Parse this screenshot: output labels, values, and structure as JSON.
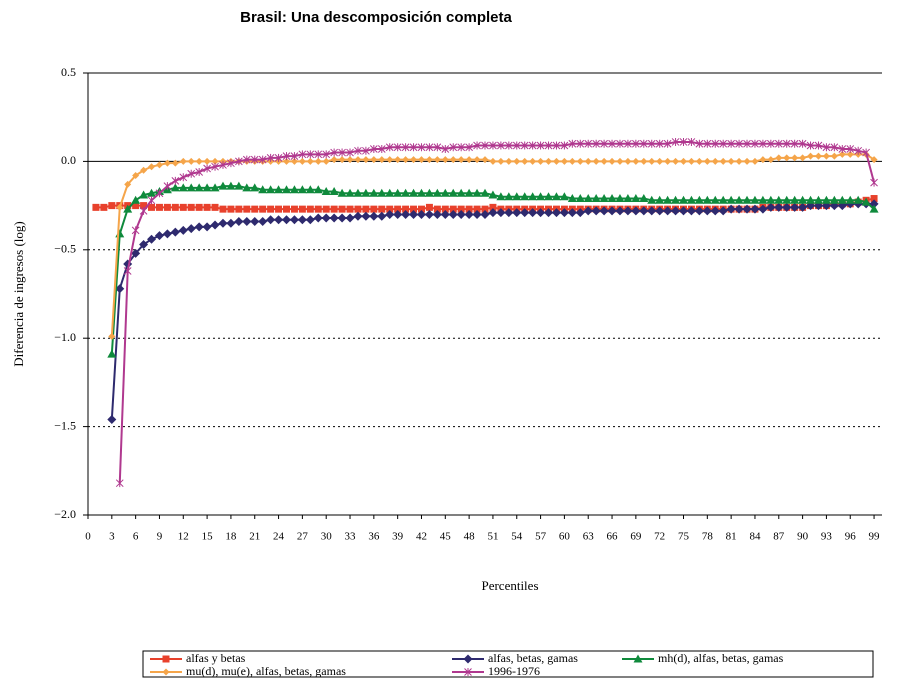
{
  "chart_data": {
    "type": "line",
    "title": "Brasil: Una descomposición completa",
    "x_label": "Percentiles",
    "y_label": "Diferencia de ingresos (log)",
    "x": [
      1,
      2,
      3,
      4,
      5,
      6,
      7,
      8,
      9,
      10,
      11,
      12,
      13,
      14,
      15,
      16,
      17,
      18,
      19,
      20,
      21,
      22,
      23,
      24,
      25,
      26,
      27,
      28,
      29,
      30,
      31,
      32,
      33,
      34,
      35,
      36,
      37,
      38,
      39,
      40,
      41,
      42,
      43,
      44,
      45,
      46,
      47,
      48,
      49,
      50,
      51,
      52,
      53,
      54,
      55,
      56,
      57,
      58,
      59,
      60,
      61,
      62,
      63,
      64,
      65,
      66,
      67,
      68,
      69,
      70,
      71,
      72,
      73,
      74,
      75,
      76,
      77,
      78,
      79,
      80,
      81,
      82,
      83,
      84,
      85,
      86,
      87,
      88,
      89,
      90,
      91,
      92,
      93,
      94,
      95,
      96,
      97,
      98,
      99
    ],
    "xlim": [
      0,
      100
    ],
    "xticks": [
      0,
      3,
      6,
      9,
      12,
      15,
      18,
      21,
      24,
      27,
      30,
      33,
      36,
      39,
      42,
      45,
      48,
      51,
      54,
      57,
      60,
      63,
      66,
      69,
      72,
      75,
      78,
      81,
      84,
      87,
      90,
      93,
      96,
      99
    ],
    "ylim": [
      -2.0,
      0.5
    ],
    "yticks": [
      {
        "value": -2.0,
        "label": "−2.0"
      },
      {
        "value": -1.5,
        "label": "−1.5"
      },
      {
        "value": -1.0,
        "label": "−1.0"
      },
      {
        "value": -0.5,
        "label": "−0.5"
      },
      {
        "value": 0,
        "label": "0.0"
      },
      0.5
    ],
    "grid": true,
    "legend": "bottom",
    "series": [
      {
        "name": "alfas y betas",
        "color": "#e8412c",
        "marker": "square",
        "values": [
          -0.26,
          -0.26,
          -0.25,
          -0.25,
          -0.25,
          -0.25,
          -0.25,
          -0.26,
          -0.26,
          -0.26,
          -0.26,
          -0.26,
          -0.26,
          -0.26,
          -0.26,
          -0.26,
          -0.27,
          -0.27,
          -0.27,
          -0.27,
          -0.27,
          -0.27,
          -0.27,
          -0.27,
          -0.27,
          -0.27,
          -0.27,
          -0.27,
          -0.27,
          -0.27,
          -0.27,
          -0.27,
          -0.27,
          -0.27,
          -0.27,
          -0.27,
          -0.27,
          -0.27,
          -0.27,
          -0.27,
          -0.27,
          -0.27,
          -0.26,
          -0.27,
          -0.27,
          -0.27,
          -0.27,
          -0.27,
          -0.27,
          -0.27,
          -0.26,
          -0.27,
          -0.27,
          -0.27,
          -0.27,
          -0.27,
          -0.27,
          -0.27,
          -0.27,
          -0.27,
          -0.27,
          -0.27,
          -0.27,
          -0.27,
          -0.27,
          -0.27,
          -0.27,
          -0.27,
          -0.27,
          -0.27,
          -0.27,
          -0.27,
          -0.27,
          -0.27,
          -0.27,
          -0.27,
          -0.27,
          -0.27,
          -0.27,
          -0.27,
          -0.27,
          -0.27,
          -0.27,
          -0.27,
          -0.26,
          -0.26,
          -0.26,
          -0.26,
          -0.26,
          -0.26,
          -0.25,
          -0.25,
          -0.25,
          -0.24,
          -0.24,
          -0.24,
          -0.23,
          -0.22,
          -0.21
        ]
      },
      {
        "name": "alfas, betas, gamas",
        "color": "#2e2a6e",
        "marker": "diamond",
        "values": [
          null,
          null,
          -1.46,
          -0.72,
          -0.58,
          -0.52,
          -0.47,
          -0.44,
          -0.42,
          -0.41,
          -0.4,
          -0.39,
          -0.38,
          -0.37,
          -0.37,
          -0.36,
          -0.35,
          -0.35,
          -0.34,
          -0.34,
          -0.34,
          -0.34,
          -0.33,
          -0.33,
          -0.33,
          -0.33,
          -0.33,
          -0.33,
          -0.32,
          -0.32,
          -0.32,
          -0.32,
          -0.32,
          -0.31,
          -0.31,
          -0.31,
          -0.31,
          -0.3,
          -0.3,
          -0.3,
          -0.3,
          -0.3,
          -0.3,
          -0.3,
          -0.3,
          -0.3,
          -0.3,
          -0.3,
          -0.3,
          -0.3,
          -0.29,
          -0.29,
          -0.29,
          -0.29,
          -0.29,
          -0.29,
          -0.29,
          -0.29,
          -0.29,
          -0.29,
          -0.29,
          -0.29,
          -0.28,
          -0.28,
          -0.28,
          -0.28,
          -0.28,
          -0.28,
          -0.28,
          -0.28,
          -0.28,
          -0.28,
          -0.28,
          -0.28,
          -0.28,
          -0.28,
          -0.28,
          -0.28,
          -0.28,
          -0.28,
          -0.27,
          -0.27,
          -0.27,
          -0.27,
          -0.27,
          -0.26,
          -0.26,
          -0.26,
          -0.26,
          -0.26,
          -0.25,
          -0.25,
          -0.25,
          -0.25,
          -0.25,
          -0.24,
          -0.24,
          -0.24,
          -0.24
        ]
      },
      {
        "name": "mh(d), alfas, betas, gamas",
        "color": "#0f8a3c",
        "marker": "triangle",
        "values": [
          null,
          null,
          -1.09,
          -0.41,
          -0.27,
          -0.22,
          -0.19,
          -0.18,
          -0.17,
          -0.16,
          -0.15,
          -0.15,
          -0.15,
          -0.15,
          -0.15,
          -0.15,
          -0.14,
          -0.14,
          -0.14,
          -0.15,
          -0.15,
          -0.16,
          -0.16,
          -0.16,
          -0.16,
          -0.16,
          -0.16,
          -0.16,
          -0.16,
          -0.17,
          -0.17,
          -0.18,
          -0.18,
          -0.18,
          -0.18,
          -0.18,
          -0.18,
          -0.18,
          -0.18,
          -0.18,
          -0.18,
          -0.18,
          -0.18,
          -0.18,
          -0.18,
          -0.18,
          -0.18,
          -0.18,
          -0.18,
          -0.18,
          -0.19,
          -0.2,
          -0.2,
          -0.2,
          -0.2,
          -0.2,
          -0.2,
          -0.2,
          -0.2,
          -0.2,
          -0.21,
          -0.21,
          -0.21,
          -0.21,
          -0.21,
          -0.21,
          -0.21,
          -0.21,
          -0.21,
          -0.21,
          -0.22,
          -0.22,
          -0.22,
          -0.22,
          -0.22,
          -0.22,
          -0.22,
          -0.22,
          -0.22,
          -0.22,
          -0.22,
          -0.22,
          -0.22,
          -0.22,
          -0.22,
          -0.22,
          -0.22,
          -0.22,
          -0.22,
          -0.22,
          -0.22,
          -0.22,
          -0.22,
          -0.22,
          -0.22,
          -0.22,
          -0.22,
          -0.23,
          -0.27
        ]
      },
      {
        "name": "mu(d), mu(e), alfas, betas, gamas",
        "color": "#f5a54a",
        "marker": "small-diamond",
        "values": [
          null,
          null,
          -0.99,
          -0.26,
          -0.13,
          -0.08,
          -0.05,
          -0.03,
          -0.02,
          -0.01,
          -0.01,
          0.0,
          0.0,
          0.0,
          0.0,
          0.0,
          0.0,
          0.0,
          0.0,
          0.0,
          0.0,
          0.0,
          0.0,
          0.0,
          0.0,
          0.0,
          0.0,
          0.0,
          0.0,
          0.0,
          0.01,
          0.01,
          0.01,
          0.01,
          0.01,
          0.01,
          0.01,
          0.01,
          0.01,
          0.01,
          0.01,
          0.01,
          0.01,
          0.01,
          0.01,
          0.01,
          0.01,
          0.01,
          0.01,
          0.01,
          0.0,
          0.0,
          0.0,
          0.0,
          0.0,
          0.0,
          0.0,
          0.0,
          0.0,
          0.0,
          0.0,
          0.0,
          0.0,
          0.0,
          0.0,
          0.0,
          0.0,
          0.0,
          0.0,
          0.0,
          0.0,
          0.0,
          0.0,
          0.0,
          0.0,
          0.0,
          0.0,
          0.0,
          0.0,
          0.0,
          0.0,
          0.0,
          0.0,
          0.0,
          0.01,
          0.01,
          0.02,
          0.02,
          0.02,
          0.02,
          0.03,
          0.03,
          0.03,
          0.03,
          0.04,
          0.04,
          0.04,
          0.04,
          0.01
        ]
      },
      {
        "name": "1996-1976",
        "color": "#b0388f",
        "marker": "star",
        "values": [
          null,
          null,
          null,
          -1.82,
          -0.62,
          -0.39,
          -0.28,
          -0.22,
          -0.18,
          -0.14,
          -0.11,
          -0.09,
          -0.07,
          -0.06,
          -0.04,
          -0.03,
          -0.02,
          -0.01,
          0.0,
          0.01,
          0.01,
          0.01,
          0.02,
          0.02,
          0.03,
          0.03,
          0.04,
          0.04,
          0.04,
          0.04,
          0.05,
          0.05,
          0.05,
          0.06,
          0.06,
          0.07,
          0.07,
          0.08,
          0.08,
          0.08,
          0.08,
          0.08,
          0.08,
          0.08,
          0.07,
          0.08,
          0.08,
          0.08,
          0.09,
          0.09,
          0.09,
          0.09,
          0.09,
          0.09,
          0.09,
          0.09,
          0.09,
          0.09,
          0.09,
          0.09,
          0.1,
          0.1,
          0.1,
          0.1,
          0.1,
          0.1,
          0.1,
          0.1,
          0.1,
          0.1,
          0.1,
          0.1,
          0.1,
          0.11,
          0.11,
          0.11,
          0.1,
          0.1,
          0.1,
          0.1,
          0.1,
          0.1,
          0.1,
          0.1,
          0.1,
          0.1,
          0.1,
          0.1,
          0.1,
          0.1,
          0.09,
          0.09,
          0.08,
          0.08,
          0.07,
          0.07,
          0.06,
          0.05,
          -0.12
        ]
      }
    ]
  }
}
